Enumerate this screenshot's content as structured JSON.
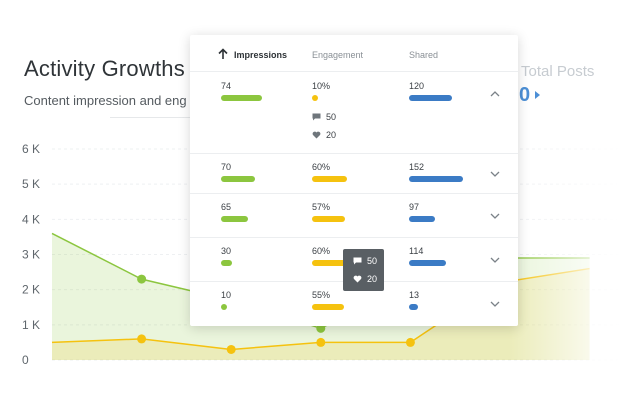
{
  "header": {
    "title": "Activity Growths",
    "subtitle": "Content impression and eng",
    "total_label": "Total Posts",
    "total_value": "0"
  },
  "colors": {
    "impressions": "#8cc63f",
    "engagement": "#f5c20f",
    "shared": "#3b7bc5",
    "accent": "#4c8fd6"
  },
  "chart_data": {
    "type": "line",
    "yticks": [
      "6 K",
      "5 K",
      "4 K",
      "3 K",
      "2 K",
      "1 K",
      "0"
    ],
    "ylim": [
      0,
      6000
    ],
    "series": [
      {
        "color": "#8cc63f",
        "points": [
          [
            0,
            3600
          ],
          [
            1,
            2300
          ],
          [
            2,
            1700
          ],
          [
            3,
            900
          ],
          [
            4,
            2200
          ],
          [
            5,
            2900
          ],
          [
            6,
            2900
          ]
        ]
      },
      {
        "color": "#f5c20f",
        "points": [
          [
            0,
            500
          ],
          [
            1,
            600
          ],
          [
            2,
            300
          ],
          [
            3,
            500
          ],
          [
            4,
            500
          ],
          [
            5,
            2200
          ],
          [
            6,
            2600
          ]
        ]
      }
    ]
  },
  "table": {
    "columns": [
      "Impressions",
      "Engagement",
      "Shared"
    ],
    "rows": [
      {
        "impressions": "74",
        "imp_frac": 0.74,
        "engagement": "10%",
        "eng_frac": 0.1,
        "shared": "120",
        "sh_frac": 0.69,
        "comments": "50",
        "likes": "20",
        "expanded": true
      },
      {
        "impressions": "70",
        "imp_frac": 0.61,
        "engagement": "60%",
        "eng_frac": 0.6,
        "shared": "152",
        "sh_frac": 0.87,
        "expanded": false
      },
      {
        "impressions": "65",
        "imp_frac": 0.48,
        "engagement": "57%",
        "eng_frac": 0.57,
        "shared": "97",
        "sh_frac": 0.42,
        "expanded": false
      },
      {
        "impressions": "30",
        "imp_frac": 0.2,
        "engagement": "60%",
        "eng_frac": 0.6,
        "shared": "114",
        "sh_frac": 0.59,
        "expanded": false
      },
      {
        "impressions": "10",
        "imp_frac": 0.1,
        "engagement": "55%",
        "eng_frac": 0.55,
        "shared": "13",
        "sh_frac": 0.14,
        "expanded": false
      }
    ]
  },
  "tooltip": {
    "comments": "50",
    "likes": "20"
  }
}
